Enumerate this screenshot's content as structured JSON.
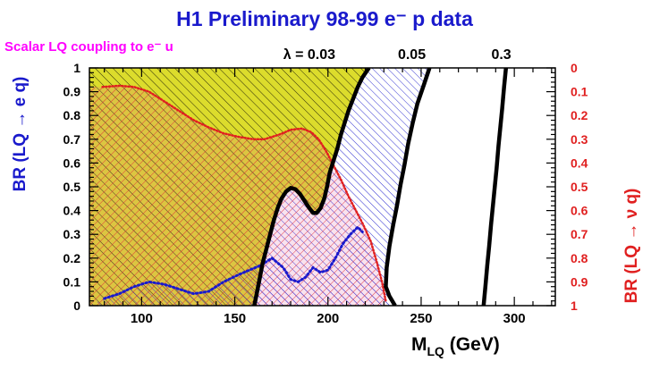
{
  "chart_data": {
    "type": "area",
    "title": "H1 Preliminary  98-99 e⁻ p data",
    "subtitle": "Scalar LQ coupling to e⁻ u",
    "xlabel": "M",
    "xlabel_sub": "LQ",
    "xlabel_unit": " (GeV)",
    "ylabel_left": "BR (LQ → e q)",
    "ylabel_right": "BR (LQ → ν q)",
    "xlim": [
      72,
      322
    ],
    "ylim": [
      0,
      1
    ],
    "xticks": [
      100,
      150,
      200,
      250,
      300
    ],
    "yticks_left": [
      0,
      0.1,
      0.2,
      0.3,
      0.4,
      0.5,
      0.6,
      0.7,
      0.8,
      0.9,
      1
    ],
    "yticks_left_labels": [
      "0",
      "0.1",
      "0.2",
      "0.3",
      "0.4",
      "0.5",
      "0.6",
      "0.7",
      "0.8",
      "0.9",
      "1"
    ],
    "yticks_right_labels": [
      "1",
      "0.9",
      "0.8",
      "0.7",
      "0.6",
      "0.5",
      "0.4",
      "0.3",
      "0.2",
      "0.1",
      "0"
    ],
    "colors": {
      "yellow": "#dcdc2c",
      "blue": "#1a1acc",
      "red": "#e02020",
      "black": "#000000",
      "magenta": "#ff00ff"
    },
    "coupling_labels": [
      {
        "text": "λ = 0.03",
        "x": 190
      },
      {
        "text": "0.05",
        "x": 245
      },
      {
        "text": "0.3",
        "x": 293
      }
    ],
    "series": [
      {
        "name": "λ = 0.03",
        "x": [
          160.5,
          162,
          163.5,
          165,
          167,
          169,
          171,
          173,
          175,
          177.5,
          180,
          182.5,
          185,
          187.5,
          190,
          192,
          194,
          196,
          198,
          199.5,
          201,
          203,
          205,
          207,
          209,
          211,
          213.5,
          216,
          218.5,
          222
        ],
        "y": [
          0.0,
          0.06,
          0.12,
          0.18,
          0.24,
          0.3,
          0.36,
          0.41,
          0.45,
          0.48,
          0.495,
          0.49,
          0.47,
          0.44,
          0.41,
          0.39,
          0.39,
          0.41,
          0.45,
          0.5,
          0.56,
          0.61,
          0.66,
          0.72,
          0.77,
          0.82,
          0.87,
          0.92,
          0.96,
          1.0
        ]
      },
      {
        "name": "0.05",
        "x": [
          236,
          233,
          231,
          231.5,
          233,
          235,
          237,
          239,
          241,
          243,
          245.5,
          248,
          251.5,
          254.5
        ],
        "y": [
          0.0,
          0.04,
          0.08,
          0.16,
          0.25,
          0.34,
          0.42,
          0.51,
          0.59,
          0.68,
          0.77,
          0.85,
          0.93,
          1.0
        ]
      },
      {
        "name": "0.3",
        "x": [
          283.5,
          284.5,
          285.5,
          286.5,
          287.5,
          288.5,
          289.5,
          290.5,
          291.5,
          292.5,
          293.5,
          294.5,
          295.5
        ],
        "y": [
          0.0,
          0.08,
          0.17,
          0.25,
          0.34,
          0.42,
          0.5,
          0.58,
          0.67,
          0.75,
          0.83,
          0.92,
          1.0
        ]
      },
      {
        "name": "blue dotted boundary",
        "x": [
          80,
          88,
          96,
          104,
          112,
          120,
          128,
          136,
          144,
          152,
          158,
          164,
          170,
          176,
          180,
          184,
          188,
          192,
          196,
          200,
          204,
          208,
          212,
          216,
          218.5
        ],
        "y": [
          0.03,
          0.05,
          0.08,
          0.1,
          0.09,
          0.07,
          0.05,
          0.06,
          0.1,
          0.13,
          0.15,
          0.17,
          0.2,
          0.16,
          0.11,
          0.1,
          0.12,
          0.16,
          0.14,
          0.15,
          0.2,
          0.26,
          0.3,
          0.33,
          0.31
        ]
      },
      {
        "name": "red dotted boundary",
        "x": [
          79,
          88,
          96,
          104,
          112,
          120,
          128,
          136,
          144,
          152,
          160,
          166,
          170,
          174,
          180,
          186,
          191,
          195,
          199,
          203,
          207,
          211,
          215,
          219,
          223,
          226,
          229,
          231
        ],
        "y": [
          0.92,
          0.925,
          0.92,
          0.9,
          0.86,
          0.82,
          0.78,
          0.75,
          0.725,
          0.71,
          0.7,
          0.7,
          0.71,
          0.72,
          0.74,
          0.745,
          0.73,
          0.7,
          0.65,
          0.59,
          0.53,
          0.46,
          0.4,
          0.34,
          0.27,
          0.19,
          0.1,
          0.02
        ]
      }
    ]
  }
}
